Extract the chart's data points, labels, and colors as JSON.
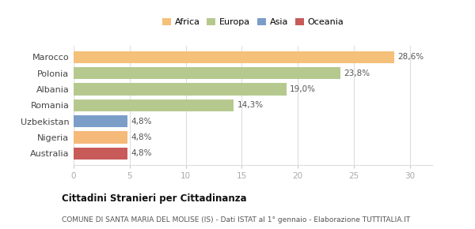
{
  "categories": [
    "Australia",
    "Nigeria",
    "Uzbekistan",
    "Romania",
    "Albania",
    "Polonia",
    "Marocco"
  ],
  "values": [
    4.8,
    4.8,
    4.8,
    14.3,
    19.0,
    23.8,
    28.6
  ],
  "labels": [
    "4,8%",
    "4,8%",
    "4,8%",
    "14,3%",
    "19,0%",
    "23,8%",
    "28,6%"
  ],
  "colors": [
    "#c85a5a",
    "#f5b97a",
    "#7b9ec9",
    "#b5c98e",
    "#b5c98e",
    "#b5c98e",
    "#f5c07a"
  ],
  "legend": [
    {
      "label": "Africa",
      "color": "#f5c07a"
    },
    {
      "label": "Europa",
      "color": "#b5c98e"
    },
    {
      "label": "Asia",
      "color": "#7b9ec9"
    },
    {
      "label": "Oceania",
      "color": "#c85a5a"
    }
  ],
  "xlim": [
    0,
    32
  ],
  "xticks": [
    0,
    5,
    10,
    15,
    20,
    25,
    30
  ],
  "title": "Cittadini Stranieri per Cittadinanza",
  "subtitle": "COMUNE DI SANTA MARIA DEL MOLISE (IS) - Dati ISTAT al 1° gennaio - Elaborazione TUTTITALIA.IT",
  "bg_color": "#ffffff",
  "bar_height": 0.75,
  "grid_color": "#dddddd",
  "label_color": "#555555",
  "ytick_color": "#444444",
  "xtick_color": "#aaaaaa"
}
